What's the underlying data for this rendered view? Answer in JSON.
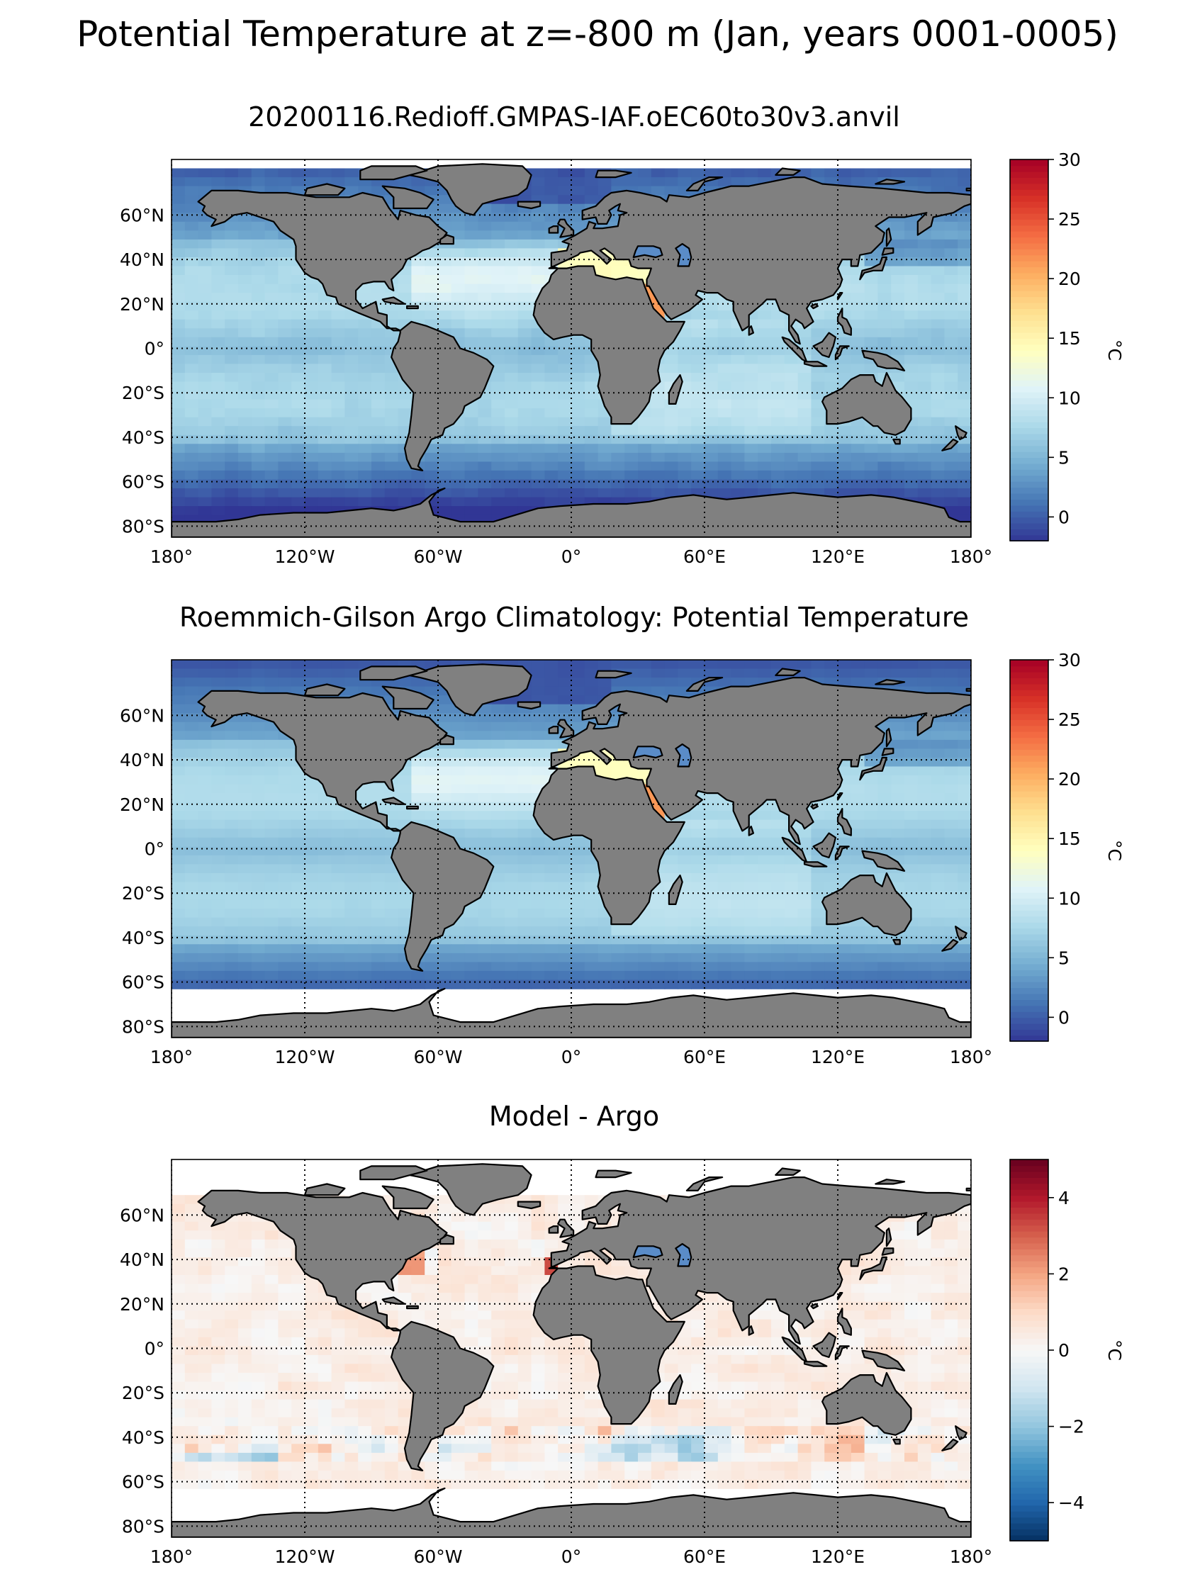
{
  "figure": {
    "suptitle": "Potential Temperature at z=-800 m (Jan, years 0001-0005)"
  },
  "chart_data": [
    {
      "type": "heatmap",
      "title": "20200116.Redioff.GMPAS-IAF.oEC60to30v3.anvil",
      "projection": "plate carree (latitude-longitude)",
      "x": {
        "ticks": [
          -180,
          -120,
          -60,
          0,
          60,
          120,
          180
        ],
        "tick_labels": [
          "180°",
          "120°W",
          "60°W",
          "0°",
          "60°E",
          "120°E",
          "180°"
        ],
        "range": [
          -180,
          180
        ]
      },
      "y": {
        "ticks": [
          -80,
          -60,
          -40,
          -20,
          0,
          20,
          40,
          60
        ],
        "tick_labels": [
          "80°S",
          "60°S",
          "40°S",
          "20°S",
          "0°",
          "20°N",
          "40°N",
          "60°N"
        ],
        "range": [
          -85,
          85
        ]
      },
      "grid": true,
      "colormap": "RdYlBu_r",
      "colorbar": {
        "label": "°C",
        "range": [
          -2,
          30
        ],
        "ticks": [
          0,
          5,
          10,
          15,
          20,
          25,
          30
        ],
        "tick_labels": [
          "0",
          "5",
          "10",
          "15",
          "20",
          "25",
          "30"
        ]
      },
      "land_color": "#808080",
      "missing_color": "#ffffff"
    },
    {
      "type": "heatmap",
      "title": "Roemmich-Gilson Argo Climatology: Potential Temperature",
      "projection": "plate carree (latitude-longitude)",
      "x": {
        "ticks": [
          -180,
          -120,
          -60,
          0,
          60,
          120,
          180
        ],
        "tick_labels": [
          "180°",
          "120°W",
          "60°W",
          "0°",
          "60°E",
          "120°E",
          "180°"
        ],
        "range": [
          -180,
          180
        ]
      },
      "y": {
        "ticks": [
          -80,
          -60,
          -40,
          -20,
          0,
          20,
          40,
          60
        ],
        "tick_labels": [
          "80°S",
          "60°S",
          "40°S",
          "20°S",
          "0°",
          "20°N",
          "40°N",
          "60°N"
        ],
        "range": [
          -85,
          85
        ]
      },
      "grid": true,
      "colormap": "RdYlBu_r",
      "colorbar": {
        "label": "°C",
        "range": [
          -2,
          30
        ],
        "ticks": [
          0,
          5,
          10,
          15,
          20,
          25,
          30
        ],
        "tick_labels": [
          "0",
          "5",
          "10",
          "15",
          "20",
          "25",
          "30"
        ]
      },
      "land_color": "#808080",
      "missing_color": "#ffffff"
    },
    {
      "type": "heatmap",
      "title": "Model - Argo",
      "projection": "plate carree (latitude-longitude)",
      "x": {
        "ticks": [
          -180,
          -120,
          -60,
          0,
          60,
          120,
          180
        ],
        "tick_labels": [
          "180°",
          "120°W",
          "60°W",
          "0°",
          "60°E",
          "120°E",
          "180°"
        ],
        "range": [
          -180,
          180
        ]
      },
      "y": {
        "ticks": [
          -80,
          -60,
          -40,
          -20,
          0,
          20,
          40,
          60
        ],
        "tick_labels": [
          "80°S",
          "60°S",
          "40°S",
          "20°S",
          "0°",
          "20°N",
          "40°N",
          "60°N"
        ],
        "range": [
          -85,
          85
        ]
      },
      "grid": true,
      "colormap": "RdBu_r",
      "colorbar": {
        "label": "°C",
        "range": [
          -5,
          5
        ],
        "ticks": [
          -4,
          -2,
          0,
          2,
          4
        ],
        "tick_labels": [
          "−4",
          "−2",
          "0",
          "2",
          "4"
        ]
      },
      "land_color": "#808080",
      "missing_color": "#ffffff"
    }
  ]
}
